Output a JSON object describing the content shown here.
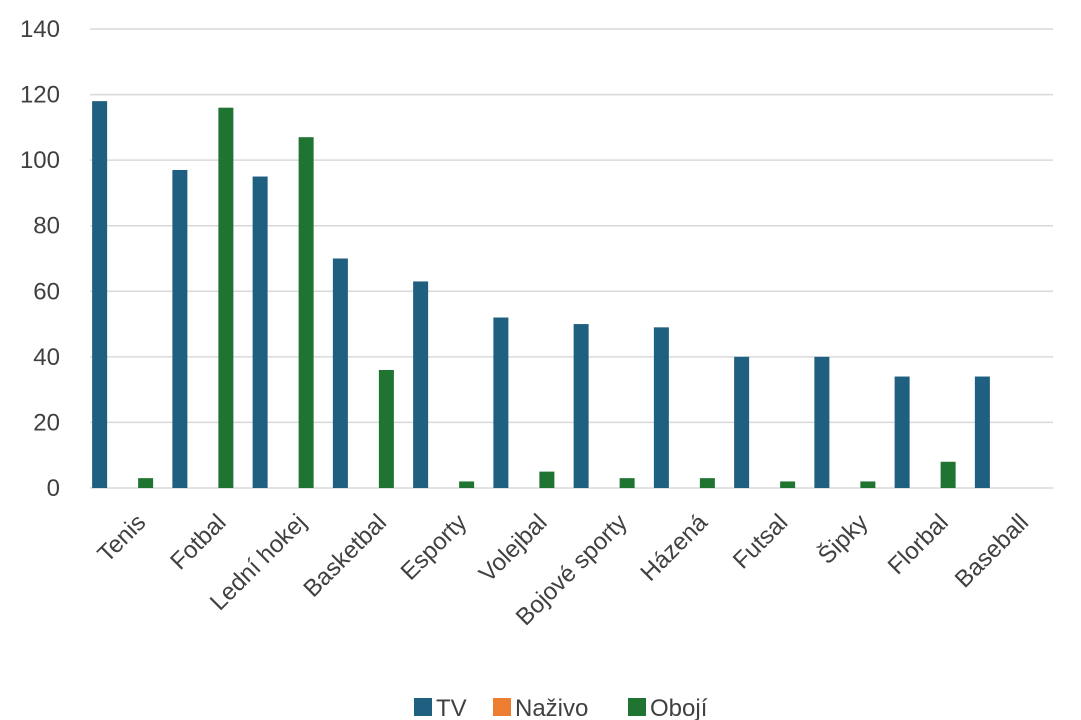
{
  "chart_data": {
    "type": "bar",
    "title": "",
    "xlabel": "",
    "ylabel": "",
    "ylim": [
      0,
      140
    ],
    "yticks": [
      0,
      20,
      40,
      60,
      80,
      100,
      120,
      140
    ],
    "grid": true,
    "legend_position": "bottom",
    "categories": [
      "Tenis",
      "Fotbal",
      "Lední hokej",
      "Basketbal",
      "Esporty",
      "Volejbal",
      "Bojové sporty",
      "Házená",
      "Futsal",
      "Šipky",
      "Florbal",
      "Baseball"
    ],
    "series": [
      {
        "name": "TV",
        "color": "#1f5f7f",
        "values": [
          118,
          97,
          95,
          70,
          63,
          52,
          50,
          49,
          40,
          40,
          34,
          34
        ]
      },
      {
        "name": "Naživo",
        "color": "#ed7d31",
        "values": [
          0,
          0,
          0,
          0,
          0,
          0,
          0,
          0,
          0,
          0,
          0,
          0
        ]
      },
      {
        "name": "Obojí",
        "color": "#1e7430",
        "values": [
          3,
          116,
          107,
          36,
          2,
          5,
          3,
          3,
          2,
          2,
          8,
          0
        ]
      }
    ]
  }
}
